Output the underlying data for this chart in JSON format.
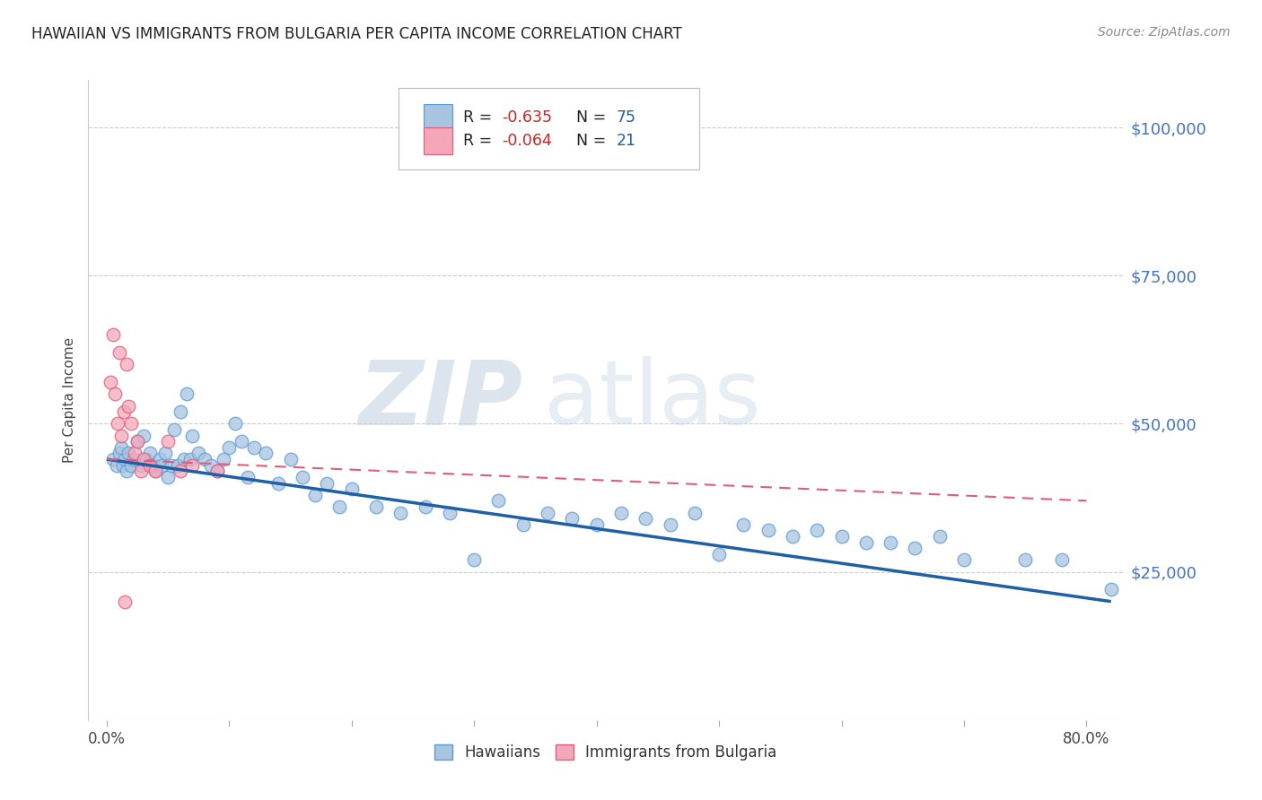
{
  "title": "HAWAIIAN VS IMMIGRANTS FROM BULGARIA PER CAPITA INCOME CORRELATION CHART",
  "source": "Source: ZipAtlas.com",
  "ylabel": "Per Capita Income",
  "xtick_positions": [
    0,
    10,
    20,
    30,
    40,
    50,
    60,
    70,
    80
  ],
  "xtick_labels_shown": {
    "0": "0.0%",
    "80": "80.0%"
  },
  "ytick_vals": [
    0,
    25000,
    50000,
    75000,
    100000
  ],
  "ytick_labels": [
    "",
    "$25,000",
    "$50,000",
    "$75,000",
    "$100,000"
  ],
  "xlim": [
    -1.5,
    83
  ],
  "ylim": [
    0,
    108000
  ],
  "hawaiians_x": [
    0.5,
    0.8,
    1.0,
    1.2,
    1.3,
    1.5,
    1.6,
    1.8,
    2.0,
    2.2,
    2.5,
    2.8,
    3.0,
    3.2,
    3.5,
    3.8,
    4.0,
    4.3,
    4.5,
    4.8,
    5.0,
    5.3,
    5.5,
    5.8,
    6.0,
    6.3,
    6.5,
    6.8,
    7.0,
    7.5,
    8.0,
    8.5,
    9.0,
    9.5,
    10.0,
    10.5,
    11.0,
    11.5,
    12.0,
    13.0,
    14.0,
    15.0,
    16.0,
    17.0,
    18.0,
    19.0,
    20.0,
    22.0,
    24.0,
    26.0,
    28.0,
    30.0,
    32.0,
    34.0,
    36.0,
    38.0,
    40.0,
    42.0,
    44.0,
    46.0,
    48.0,
    50.0,
    52.0,
    54.0,
    56.0,
    58.0,
    60.0,
    62.0,
    64.0,
    66.0,
    68.0,
    70.0,
    75.0,
    78.0,
    82.0
  ],
  "hawaiians_y": [
    44000,
    43000,
    45000,
    46000,
    43000,
    44000,
    42000,
    45000,
    43000,
    44000,
    47000,
    43000,
    48000,
    44000,
    45000,
    43000,
    42000,
    44000,
    43000,
    45000,
    41000,
    43000,
    49000,
    43000,
    52000,
    44000,
    55000,
    44000,
    48000,
    45000,
    44000,
    43000,
    42000,
    44000,
    46000,
    50000,
    47000,
    41000,
    46000,
    45000,
    40000,
    44000,
    41000,
    38000,
    40000,
    36000,
    39000,
    36000,
    35000,
    36000,
    35000,
    27000,
    37000,
    33000,
    35000,
    34000,
    33000,
    35000,
    34000,
    33000,
    35000,
    28000,
    33000,
    32000,
    31000,
    32000,
    31000,
    30000,
    30000,
    29000,
    31000,
    27000,
    27000,
    27000,
    22000
  ],
  "bulgaria_x": [
    0.3,
    0.5,
    0.7,
    0.9,
    1.0,
    1.2,
    1.4,
    1.6,
    1.8,
    2.0,
    2.3,
    2.5,
    2.8,
    3.0,
    3.5,
    4.0,
    5.0,
    6.0,
    7.0,
    9.0,
    1.5
  ],
  "bulgaria_y": [
    57000,
    65000,
    55000,
    50000,
    62000,
    48000,
    52000,
    60000,
    53000,
    50000,
    45000,
    47000,
    42000,
    44000,
    43000,
    42000,
    47000,
    42000,
    43000,
    42000,
    20000
  ],
  "hawaiians_color": "#a8c4e0",
  "hawaiians_edge": "#5b9bd5",
  "bulgaria_color": "#f4a7b9",
  "bulgaria_edge": "#e05c7a",
  "blue_line_color": "#1f5fa6",
  "pink_line_color": "#e05c7a",
  "blue_line_x": [
    0,
    82
  ],
  "blue_line_y": [
    44000,
    20000
  ],
  "pink_line_x": [
    0,
    80
  ],
  "pink_line_y": [
    44000,
    37000
  ],
  "watermark_zip": "ZIP",
  "watermark_atlas": "atlas",
  "watermark_color": "#c8d8ea",
  "title_fontsize": 12,
  "source_fontsize": 10,
  "ylabel_fontsize": 11,
  "ytick_color": "#4472c4",
  "xtick_color": "#444444",
  "background_color": "#ffffff",
  "grid_color": "#cccccc",
  "r1": "-0.635",
  "n1": "75",
  "r2": "-0.064",
  "n2": "21",
  "red_color": "#cc2222",
  "blue_n_color": "#1f5fa6"
}
